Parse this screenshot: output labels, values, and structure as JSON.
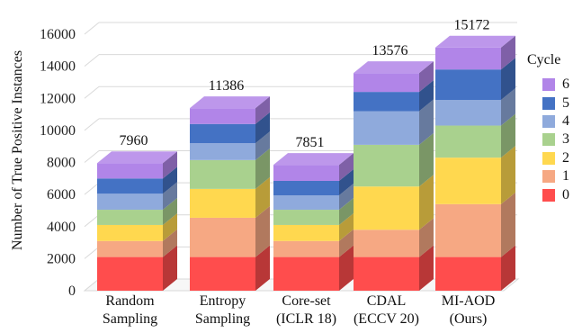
{
  "chart_data": {
    "type": "bar",
    "stacked": true,
    "style": "3d",
    "ylabel": "Number of True Positive Instances",
    "ylim": [
      0,
      16000
    ],
    "yticks": [
      "0",
      "2000",
      "4000",
      "6000",
      "8000",
      "10000",
      "12000",
      "14000",
      "16000"
    ],
    "categories": [
      [
        "Random",
        "Sampling"
      ],
      [
        "Entropy",
        "Sampling"
      ],
      [
        "Core-set",
        "(ICLR 18)"
      ],
      [
        "CDAL",
        "(ECCV 20)"
      ],
      [
        "MI-AOD",
        "(Ours)"
      ]
    ],
    "totals": [
      "7960",
      "11386",
      "7851",
      "13576",
      "15172"
    ],
    "legend_title": "Cycle",
    "legend_position": "right",
    "series": [
      {
        "name": "0",
        "color": "#ff4d4d",
        "values": [
          2100,
          2100,
          2100,
          2100,
          2100
        ]
      },
      {
        "name": "1",
        "color": "#f6a883",
        "values": [
          1000,
          2450,
          1000,
          1700,
          3300
        ]
      },
      {
        "name": "2",
        "color": "#ffd84f",
        "values": [
          1000,
          1800,
          1000,
          2700,
          2900
        ]
      },
      {
        "name": "3",
        "color": "#a9d18e",
        "values": [
          950,
          1800,
          950,
          2600,
          2000
        ]
      },
      {
        "name": "4",
        "color": "#8faadc",
        "values": [
          1000,
          1050,
          900,
          2100,
          1600
        ]
      },
      {
        "name": "5",
        "color": "#4472c4",
        "values": [
          950,
          1200,
          900,
          1200,
          1900
        ]
      },
      {
        "name": "6",
        "color": "#b185e8",
        "values": [
          960,
          986,
          1001,
          1176,
          1372
        ]
      }
    ]
  }
}
